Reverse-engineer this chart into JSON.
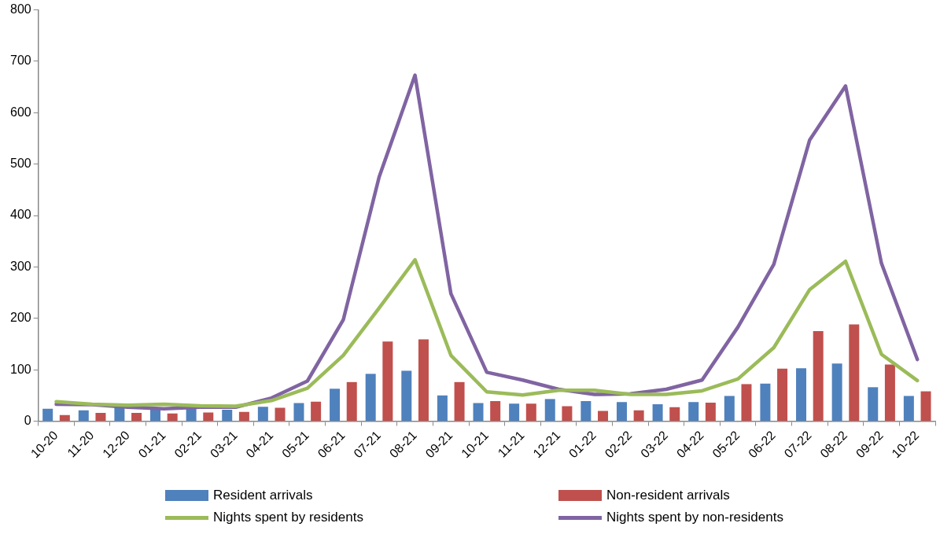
{
  "chart_data": {
    "type": "bar",
    "categories": [
      "10-20",
      "11-20",
      "12-20",
      "01-21",
      "02-21",
      "03-21",
      "04-21",
      "05-21",
      "06-21",
      "07-21",
      "08-21",
      "09-21",
      "10-21",
      "11-21",
      "12-21",
      "01-22",
      "02-22",
      "03-22",
      "04-22",
      "05-22",
      "06-22",
      "07-22",
      "08-22",
      "09-22",
      "10-22"
    ],
    "series": [
      {
        "name": "Resident arrivals",
        "color": "#4f81bd",
        "values": [
          24,
          21,
          27,
          24,
          24,
          22,
          28,
          35,
          63,
          92,
          98,
          50,
          35,
          34,
          43,
          39,
          37,
          33,
          37,
          49,
          73,
          103,
          112,
          66,
          49
        ]
      },
      {
        "name": "Non-resident arrivals",
        "color": "#c0504d",
        "values": [
          12,
          16,
          16,
          15,
          17,
          18,
          26,
          38,
          76,
          155,
          159,
          76,
          39,
          34,
          29,
          20,
          21,
          27,
          36,
          72,
          102,
          175,
          188,
          110,
          58
        ]
      },
      {
        "name": "Nights spent by residents",
        "type": "line",
        "color": "#9bbb59",
        "values": [
          38,
          33,
          31,
          33,
          30,
          29,
          40,
          64,
          128,
          220,
          314,
          128,
          57,
          51,
          60,
          60,
          52,
          52,
          59,
          82,
          143,
          256,
          311,
          130,
          79
        ]
      },
      {
        "name": "Nights spent by non-residents",
        "type": "line",
        "color": "#8064a2",
        "values": [
          33,
          32,
          27,
          24,
          27,
          27,
          45,
          78,
          197,
          475,
          673,
          248,
          95,
          80,
          62,
          52,
          53,
          62,
          80,
          183,
          305,
          547,
          652,
          307,
          120
        ]
      }
    ],
    "ylim": [
      0,
      800
    ],
    "yticks": [
      0,
      100,
      200,
      300,
      400,
      500,
      600,
      700,
      800
    ],
    "grid": false,
    "legend": "bottom",
    "marker": "none",
    "line_style": "solid"
  }
}
